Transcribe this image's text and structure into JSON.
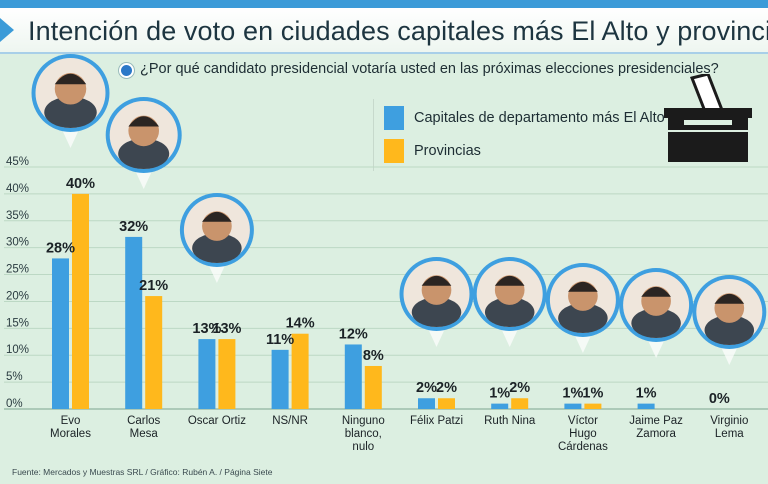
{
  "title": "Intención de voto en ciudades capitales más El Alto y provincias",
  "question": "¿Por qué candidato presidencial votaría usted en las próximas elecciones presidenciales?",
  "source": "Fuente: Mercados y Muestras SRL / Gráfico: Rubén A. / Página Siete",
  "colors": {
    "capitales": "#3e9fe0",
    "provincias": "#ffb81c",
    "accent": "#3b9bd8",
    "background": "#dcefe1"
  },
  "icons": [
    "ballot-box-icon",
    "candidate-photo"
  ],
  "chart_data": {
    "type": "bar",
    "title": "Intención de voto en ciudades capitales más El Alto y provincias",
    "xlabel": "",
    "ylabel": "",
    "ylim": [
      0,
      45
    ],
    "yticks": [
      "0%",
      "5%",
      "10%",
      "15%",
      "20%",
      "25%",
      "30%",
      "35%",
      "40%",
      "45%"
    ],
    "grid": true,
    "legend": "top-right",
    "categories": [
      [
        "Evo",
        "Morales"
      ],
      [
        "Carlos",
        "Mesa"
      ],
      [
        "Oscar Ortiz"
      ],
      [
        "NS/NR"
      ],
      [
        "Ninguno",
        "blanco,",
        "nulo"
      ],
      [
        "Félix Patzi"
      ],
      [
        "Ruth Nina"
      ],
      [
        "Víctor",
        "Hugo",
        "Cárdenas"
      ],
      [
        "Jaime Paz",
        "Zamora"
      ],
      [
        "Virginio",
        "Lema"
      ]
    ],
    "series": [
      {
        "name": "Capitales de departamento más El Alto",
        "values": [
          28,
          32,
          13,
          11,
          12,
          2,
          1,
          1,
          1,
          0
        ],
        "labels": [
          "28%",
          "32%",
          "13%",
          "11%",
          "12%",
          "2%",
          "1%",
          "1%",
          "1%",
          "0%"
        ]
      },
      {
        "name": "Provincias",
        "values": [
          40,
          21,
          13,
          14,
          8,
          2,
          2,
          1,
          null,
          null
        ],
        "labels": [
          "40%",
          "21%",
          "13%",
          "14%",
          "8%",
          "2%",
          "2%",
          "1%",
          "",
          ""
        ]
      }
    ]
  }
}
